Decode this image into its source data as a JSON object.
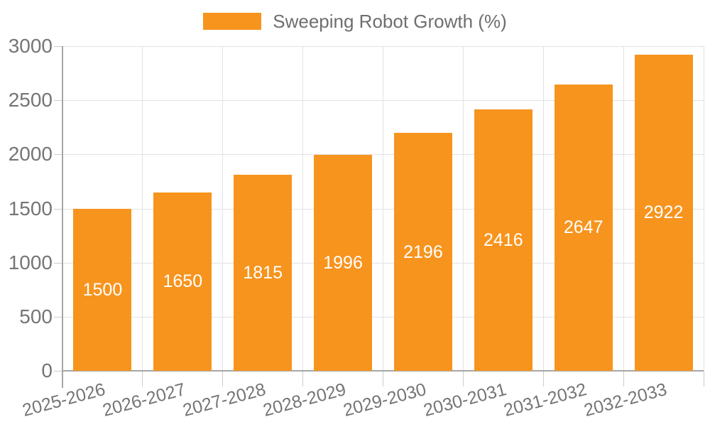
{
  "colors": {
    "bar": "#f7941e",
    "bar_label_text": "#ffffff",
    "axis_text": "#757575",
    "legend_text": "#6e6e6e",
    "gridline": "#e2e2e2",
    "tick": "#cccccc",
    "axis_line": "#a6a6a6",
    "background": "#ffffff"
  },
  "chart_data": {
    "type": "bar",
    "title": "Sweeping Robot Growth (%)",
    "legend": [
      "Sweeping Robot Growth (%)"
    ],
    "legend_position": "top-center",
    "categories": [
      "2025-2026",
      "2026-2027",
      "2027-2028",
      "2028-2029",
      "2029-2030",
      "2030-2031",
      "2031-2032",
      "2032-2033"
    ],
    "values": [
      1500,
      1650,
      1815,
      1996,
      2196,
      2416,
      2647,
      2922
    ],
    "bar_value_labels": [
      "1500",
      "1650",
      "1815",
      "1996",
      "2196",
      "2416",
      "2647",
      "2922"
    ],
    "xlabel": "",
    "ylabel": "",
    "ylim": [
      0,
      3000
    ],
    "yticks": [
      0,
      500,
      1000,
      1500,
      2000,
      2500,
      3000
    ],
    "grid": true,
    "x_label_rotation_deg": -15
  }
}
